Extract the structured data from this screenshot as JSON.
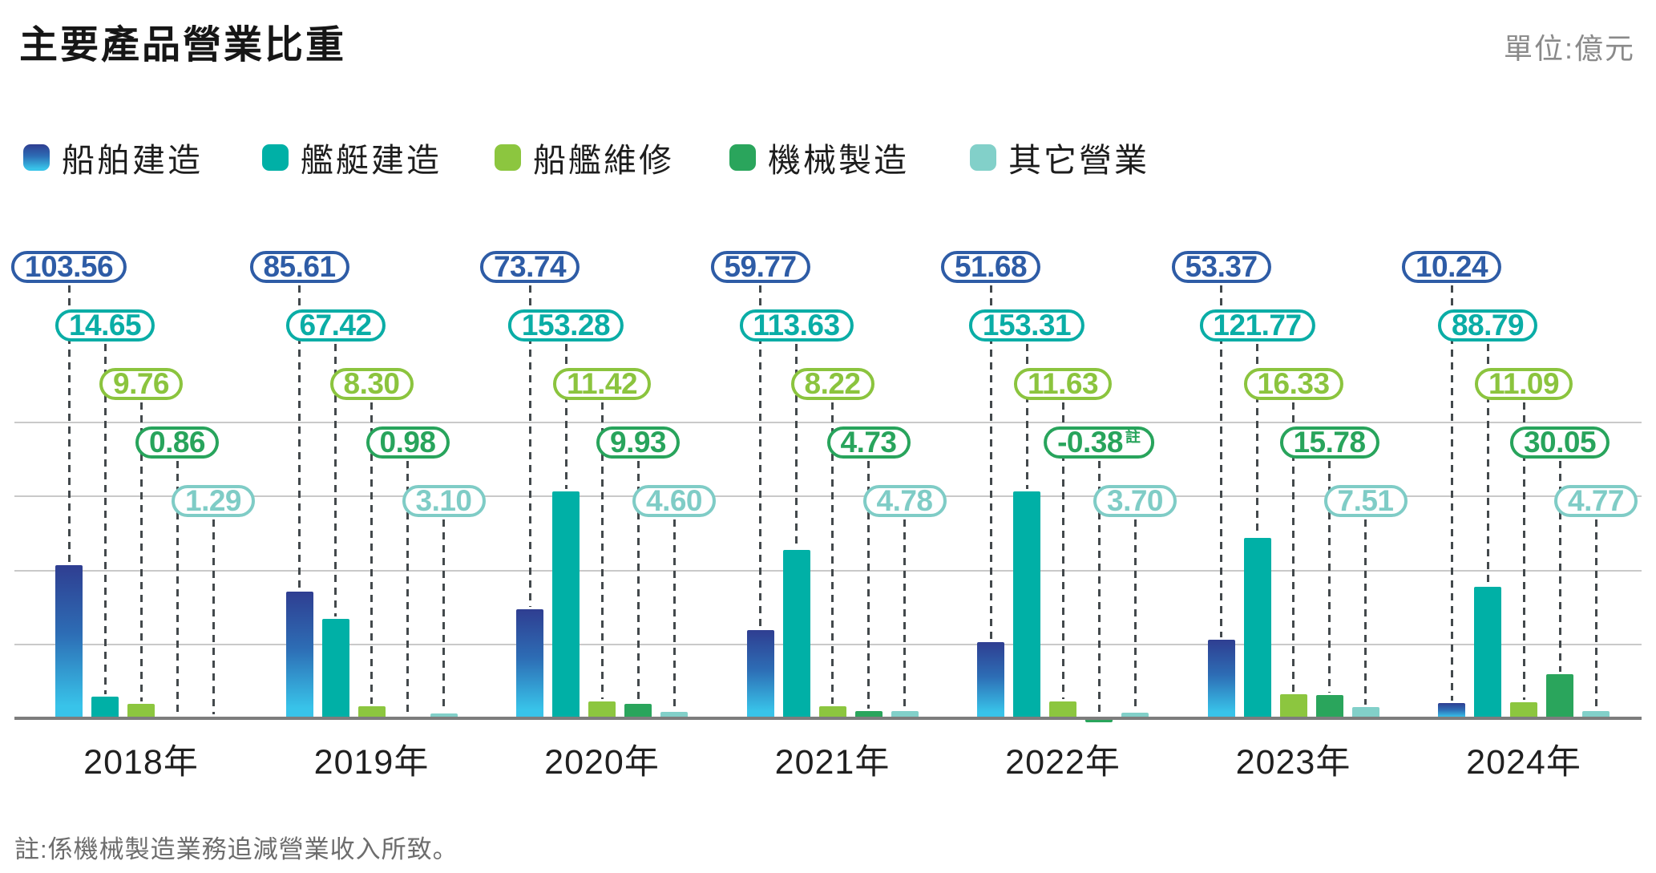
{
  "title": "主要產品營業比重",
  "unit_label": "單位:億元",
  "footnote": "註:係機械製造業務追減營業收入所致。",
  "chart_data": {
    "type": "bar",
    "title": "主要產品營業比重",
    "unit": "億元",
    "categories": [
      "2018年",
      "2019年",
      "2020年",
      "2021年",
      "2022年",
      "2023年",
      "2024年"
    ],
    "series": [
      {
        "name": "船舶建造",
        "values": [
          103.56,
          85.61,
          73.74,
          59.77,
          51.68,
          53.37,
          10.24
        ],
        "bar_gradient": [
          "#2f3e91",
          "#2d6db5",
          "#38c3e9"
        ],
        "label_color": "#2e5ca6"
      },
      {
        "name": "艦艇建造",
        "values": [
          14.65,
          67.42,
          153.28,
          113.63,
          153.31,
          121.77,
          88.79
        ],
        "bar_color": "#00b0a6",
        "label_color": "#0aada6"
      },
      {
        "name": "船艦維修",
        "values": [
          9.76,
          8.3,
          11.42,
          8.22,
          11.63,
          16.33,
          11.09
        ],
        "bar_color": "#8cc63f",
        "label_color": "#8bc43e"
      },
      {
        "name": "機械製造",
        "values": [
          0.86,
          0.98,
          9.93,
          4.73,
          -0.38,
          15.78,
          30.05
        ],
        "bar_color": "#2aa55c",
        "label_color": "#28a45c"
      },
      {
        "name": "其它營業",
        "values": [
          1.29,
          3.1,
          4.6,
          4.78,
          3.7,
          7.51,
          4.77
        ],
        "bar_color": "#82d0c9",
        "label_color": "#7fccc6"
      }
    ],
    "annotation": {
      "series_index": 3,
      "category_index": 4,
      "marker": "註"
    },
    "ylim": [
      0,
      200
    ],
    "grid_step": 50,
    "grid": true,
    "legend_position": "top-left",
    "value_label_decimals": 2
  }
}
